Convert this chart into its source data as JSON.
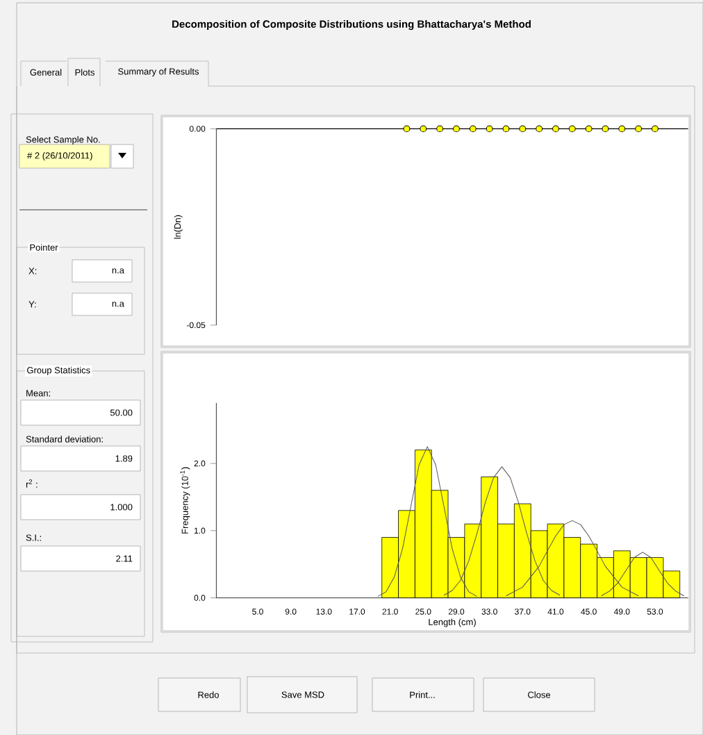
{
  "chart_data": [
    {
      "type": "other",
      "title": "Decomposition of Composite Distributions using Bhattacharya's Method",
      "annotations": [
        "General",
        "Plots",
        "Summary of Results",
        "Select Sample No.",
        "# 2 (26/10/2011)",
        "Pointer",
        "X:",
        "n.a",
        "Y:",
        "n.a",
        "Group Statistics",
        "Mean:",
        "50.00",
        "Standard deviation:",
        "1.89",
        "r$^{2}$ :",
        "1.000",
        "S.I.:",
        "2.11",
        "Redo",
        "Save MSD",
        "Print...",
        "Close"
      ]
    },
    {
      "type": "scatter",
      "ylabel": "ln(Dn)",
      "xlim": [
        0,
        57
      ],
      "ylim": [
        -0.05,
        0
      ],
      "yticks": [
        {
          "value": 0,
          "label": "0.00"
        },
        {
          "value": -0.05,
          "label": "-0.05"
        }
      ],
      "tick_labels": "y",
      "marker": "circle",
      "ref_lines": [
        {
          "axis": "y",
          "value": 0,
          "color": "#000000"
        }
      ],
      "series": [
        {
          "color": "#ffff00",
          "x": [
            23,
            25,
            27,
            29,
            31,
            33,
            35,
            37,
            39,
            41,
            43,
            45,
            47,
            49,
            51,
            53
          ],
          "values": [
            0,
            0,
            0,
            0,
            0,
            0,
            0,
            0,
            0,
            0,
            0,
            0,
            0,
            0,
            0,
            0
          ]
        }
      ]
    },
    {
      "type": "histogram",
      "xlabel": "Length (cm)",
      "ylabel": "Frequency (10$^{-1}$)",
      "color": "#ffff00",
      "bins": [
        20,
        22,
        24,
        26,
        28,
        30,
        32,
        34,
        36,
        38,
        40,
        42,
        44,
        46,
        48,
        50,
        52,
        54,
        56
      ],
      "values": [
        0.9,
        1.3,
        2.2,
        1.6,
        0.9,
        1.1,
        1.8,
        1.1,
        1.4,
        1.0,
        1.1,
        0.9,
        0.8,
        0.6,
        0.7,
        0.6,
        0.6,
        0.4
      ],
      "xlim": [
        0,
        57
      ],
      "ylim": [
        0,
        2.9
      ],
      "xticks": [
        {
          "value": 5,
          "label": "5.0"
        },
        {
          "value": 9,
          "label": "9.0"
        },
        {
          "value": 13,
          "label": "13.0"
        },
        {
          "value": 17,
          "label": "17.0"
        },
        {
          "value": 21,
          "label": "21.0"
        },
        {
          "value": 25,
          "label": "25.0"
        },
        {
          "value": 29,
          "label": "29.0"
        },
        {
          "value": 33,
          "label": "33.0"
        },
        {
          "value": 37,
          "label": "37.0"
        },
        {
          "value": 41,
          "label": "41.0"
        },
        {
          "value": 45,
          "label": "45.0"
        },
        {
          "value": 49,
          "label": "49.0"
        },
        {
          "value": 53,
          "label": "53.0"
        }
      ],
      "yticks": [
        {
          "value": 0,
          "label": "0.0"
        },
        {
          "value": 1,
          "label": "1.0"
        },
        {
          "value": 2,
          "label": "2.0"
        }
      ],
      "series": [
        {
          "type": "line",
          "color": "#555555",
          "x": [
            19.5,
            20.5,
            21.5,
            22.5,
            23.5,
            24.5,
            25.5,
            26.5,
            27.5,
            28.5,
            29.5,
            30.5,
            31.5
          ],
          "values": [
            0.02,
            0.09,
            0.31,
            0.73,
            1.36,
            1.98,
            2.25,
            1.98,
            1.36,
            0.73,
            0.31,
            0.09,
            0.02
          ]
        },
        {
          "type": "line",
          "color": "#555555",
          "x": [
            27.5,
            28.5,
            29.5,
            30.5,
            31.5,
            32.5,
            33.5,
            34.5,
            35.5,
            36.5,
            37.5,
            38.5,
            39.5,
            40.5,
            41.5
          ],
          "values": [
            0.04,
            0.11,
            0.26,
            0.55,
            0.96,
            1.42,
            1.79,
            1.95,
            1.79,
            1.42,
            0.96,
            0.55,
            0.26,
            0.11,
            0.04
          ]
        },
        {
          "type": "line",
          "color": "#555555",
          "x": [
            35,
            37,
            39,
            40,
            41,
            42,
            43,
            44,
            45,
            46,
            47,
            49,
            51
          ],
          "values": [
            0.03,
            0.16,
            0.47,
            0.7,
            0.92,
            1.09,
            1.15,
            1.09,
            0.92,
            0.7,
            0.47,
            0.16,
            0.03
          ]
        },
        {
          "type": "line",
          "color": "#555555",
          "x": [
            46.5,
            47.5,
            48.5,
            49.5,
            50.5,
            51.5,
            52.5,
            53.5,
            54.5,
            55.5,
            56.5
          ],
          "values": [
            0.03,
            0.1,
            0.22,
            0.41,
            0.6,
            0.68,
            0.6,
            0.41,
            0.22,
            0.1,
            0.03
          ]
        }
      ]
    }
  ]
}
